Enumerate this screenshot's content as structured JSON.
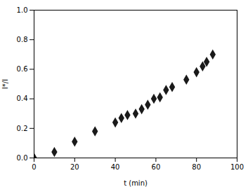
{
  "chart_data": {
    "type": "scatter",
    "x": [
      0,
      10,
      20,
      30,
      40,
      43,
      46,
      50,
      53,
      56,
      59,
      62,
      65,
      68,
      75,
      80,
      83,
      85,
      88
    ],
    "values": [
      0.0,
      0.04,
      0.11,
      0.18,
      0.24,
      0.27,
      0.29,
      0.3,
      0.33,
      0.36,
      0.4,
      0.41,
      0.46,
      0.48,
      0.53,
      0.58,
      0.62,
      0.65,
      0.7
    ],
    "xlabel": "t (min)",
    "ylabel": "I*/I",
    "xlim": [
      0,
      100
    ],
    "ylim": [
      0,
      1
    ],
    "xticks": [
      0,
      20,
      40,
      60,
      80,
      100
    ],
    "yticks": [
      {
        "value": 0,
        "label": "0.0"
      },
      0.2,
      0.4,
      0.6,
      0.8,
      {
        "value": 1,
        "label": "1.0"
      }
    ],
    "marker": "diamond",
    "color": "#1a1a1a",
    "grid": false
  }
}
